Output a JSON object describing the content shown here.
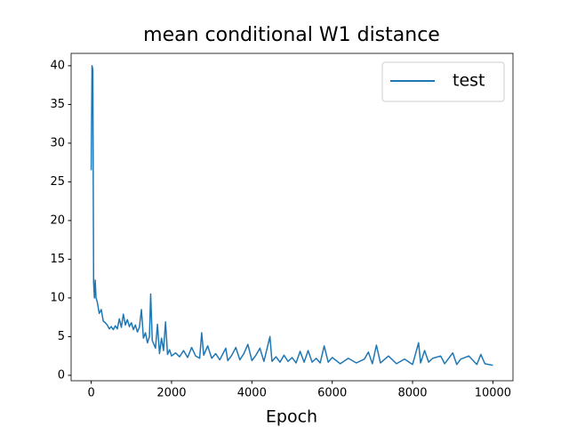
{
  "chart_data": {
    "type": "line",
    "title": "mean conditional W1 distance",
    "xlabel": "Epoch",
    "x": [
      0,
      20,
      40,
      60,
      80,
      100,
      120,
      150,
      200,
      250,
      300,
      350,
      400,
      450,
      500,
      550,
      600,
      650,
      700,
      750,
      800,
      850,
      900,
      950,
      1000,
      1050,
      1100,
      1150,
      1200,
      1250,
      1300,
      1350,
      1400,
      1450,
      1480,
      1520,
      1600,
      1650,
      1700,
      1750,
      1800,
      1850,
      1900,
      1950,
      2000,
      2100,
      2200,
      2300,
      2400,
      2500,
      2600,
      2700,
      2750,
      2800,
      2900,
      3000,
      3100,
      3200,
      3350,
      3400,
      3500,
      3600,
      3700,
      3800,
      3900,
      4000,
      4100,
      4200,
      4300,
      4450,
      4500,
      4600,
      4700,
      4800,
      4900,
      5000,
      5100,
      5200,
      5300,
      5400,
      5500,
      5600,
      5700,
      5800,
      5900,
      6000,
      6200,
      6400,
      6600,
      6800,
      6900,
      7000,
      7100,
      7200,
      7400,
      7600,
      7800,
      8000,
      8150,
      8200,
      8300,
      8400,
      8500,
      8700,
      8800,
      9000,
      9100,
      9200,
      9400,
      9600,
      9700,
      9800,
      10000
    ],
    "series": [
      {
        "name": "test",
        "color": "#1f77b4",
        "values": [
          26.5,
          40,
          39.5,
          12,
          10,
          12.3,
          10,
          9.5,
          8,
          8.5,
          7,
          6.8,
          6.5,
          6,
          6.3,
          5.9,
          6.4,
          6,
          7.3,
          6.2,
          7.9,
          6.5,
          7.2,
          6.3,
          6.8,
          5.9,
          6.5,
          5.6,
          6.2,
          8.5,
          4.8,
          5.5,
          4.2,
          5,
          10.5,
          4.5,
          3.5,
          6.6,
          2.8,
          4.8,
          3.2,
          6.9,
          2.7,
          3.3,
          2.5,
          2.9,
          2.4,
          3.2,
          2.3,
          3.6,
          2.5,
          2.2,
          5.5,
          2.6,
          3.8,
          2.2,
          2.8,
          2,
          3.5,
          1.9,
          2.6,
          3.6,
          2,
          2.8,
          4,
          1.9,
          2.6,
          3.5,
          1.8,
          5,
          1.8,
          2.4,
          1.7,
          2.6,
          1.8,
          2.3,
          1.6,
          3.1,
          1.7,
          3.2,
          1.7,
          2.2,
          1.6,
          3.8,
          1.7,
          2.3,
          1.5,
          2.2,
          1.6,
          2.1,
          3,
          1.5,
          3.9,
          1.6,
          2.5,
          1.5,
          2.1,
          1.4,
          4.2,
          1.6,
          3.2,
          1.7,
          2.2,
          2.5,
          1.5,
          2.9,
          1.4,
          2.1,
          2.5,
          1.4,
          2.7,
          1.5,
          1.3
        ]
      }
    ],
    "xlim": [
      -500,
      10500
    ],
    "xticks": [
      0,
      2000,
      4000,
      6000,
      8000,
      10000
    ],
    "ylim": [
      -0.7,
      41.6
    ],
    "yticks": [
      0,
      5,
      10,
      15,
      20,
      25,
      30,
      35,
      40
    ],
    "legend": "upper right",
    "grid": false
  }
}
